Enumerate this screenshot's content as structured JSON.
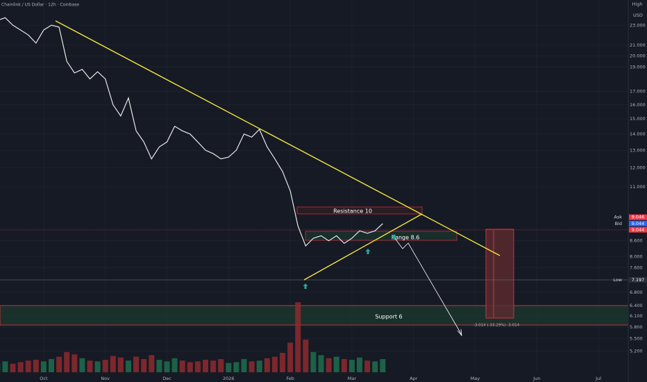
{
  "header": {
    "title": "Chainlink / US Dollar · 12h · Coinbase",
    "currency": "USD",
    "high_label": "High"
  },
  "chart_data": {
    "type": "line",
    "color": "#e8e8e8",
    "categories": [
      null,
      null,
      null,
      null,
      null,
      null,
      "Oct",
      null,
      null,
      null,
      null,
      null,
      null,
      null,
      "Nov",
      null,
      null,
      null,
      null,
      null,
      null,
      null,
      "Dec",
      null,
      null,
      null,
      null,
      null,
      null,
      null,
      "2026",
      null,
      null,
      null,
      null,
      null,
      null,
      null,
      "Feb",
      null,
      null,
      null,
      null,
      null,
      null,
      null,
      "Mar",
      null,
      null,
      null,
      null,
      null,
      null,
      null,
      "Apr",
      null,
      null,
      null,
      null,
      null,
      null,
      null,
      "May",
      null,
      null,
      null,
      null,
      null,
      null,
      null,
      "Jun",
      null,
      null,
      null,
      null,
      null,
      null,
      null,
      "Jul",
      null,
      null,
      null
    ],
    "values": [
      23.5,
      23.8,
      23,
      22.5,
      22,
      21.2,
      22.5,
      23,
      22.8,
      19.5,
      18.5,
      18.8,
      18,
      18.6,
      18,
      16,
      15.2,
      16.5,
      14.2,
      13.5,
      12.5,
      13.2,
      13.5,
      14.5,
      14.2,
      14,
      13.5,
      13,
      12.8,
      12.5,
      12.6,
      13,
      14,
      13.8,
      14.3,
      13.2,
      12.5,
      11.8,
      10.8,
      9.2,
      8.4,
      8.7,
      8.8,
      8.6,
      8.8,
      8.5,
      8.7,
      9,
      8.9,
      9,
      9.3,
      null,
      null,
      null,
      null,
      null,
      null,
      null,
      null,
      null,
      null,
      null,
      null,
      null,
      null,
      null,
      null,
      null,
      null,
      null,
      null,
      null,
      null,
      null,
      null,
      null,
      null,
      null,
      null,
      null,
      null,
      null
    ],
    "volume": {
      "up_color": "#1e6e4e",
      "down_color": "#8e2a2e",
      "vlim": [
        0,
        500
      ],
      "values": [
        120,
        140,
        110,
        130,
        150,
        160,
        140,
        170,
        200,
        260,
        230,
        180,
        150,
        140,
        160,
        210,
        190,
        150,
        200,
        170,
        220,
        160,
        140,
        180,
        150,
        130,
        140,
        160,
        150,
        170,
        120,
        130,
        170,
        140,
        150,
        180,
        200,
        250,
        380,
        900,
        420,
        260,
        220,
        180,
        200,
        170,
        160,
        190,
        150,
        140,
        170,
        null,
        null,
        null,
        null,
        null,
        null,
        null,
        null,
        null,
        null,
        null,
        null,
        null,
        null,
        null,
        null,
        null,
        null,
        null,
        null,
        null,
        null,
        null,
        null,
        null,
        null,
        null,
        null,
        null,
        null,
        null
      ]
    },
    "ylim": [
      4.72,
      25.8
    ],
    "log_scale": true,
    "grid": true,
    "yticks": [
      {
        "value": 23,
        "label": "23.000"
      },
      {
        "value": 21,
        "label": "21.000"
      },
      {
        "value": 20,
        "label": "20.000"
      },
      {
        "value": 19,
        "label": "19.000"
      },
      {
        "value": 17,
        "label": "17.000"
      },
      {
        "value": 16,
        "label": "16.000"
      },
      {
        "value": 15,
        "label": "15.000"
      },
      {
        "value": 14,
        "label": "14.000"
      },
      {
        "value": 13,
        "label": "13.000"
      },
      {
        "value": 12,
        "label": "12.000"
      },
      {
        "value": 11,
        "label": "11.000"
      },
      {
        "value": 8.6,
        "label": "8.600"
      },
      {
        "value": 8,
        "label": "8.000"
      },
      {
        "value": 7.6,
        "label": "7.600"
      },
      {
        "value": 6.8,
        "label": "6.800"
      },
      {
        "value": 6.4,
        "label": "6.400"
      },
      {
        "value": 6.1,
        "label": "6.100"
      },
      {
        "value": 5.8,
        "label": "5.800"
      },
      {
        "value": 5.5,
        "label": "5.500"
      },
      {
        "value": 5.2,
        "label": "5.200"
      }
    ],
    "price_badges": [
      {
        "label": "Ask",
        "value": 9.046,
        "color": "#f23645"
      },
      {
        "label": "Bid",
        "value": 9.044,
        "color": "#2962ff"
      },
      {
        "value": 9.044,
        "color": "#f23645"
      },
      {
        "label": "Low",
        "value": 7.197,
        "color": "#2a2e39"
      }
    ],
    "annotations": {
      "resistance": "Resistance 10",
      "range": "Range 8.6",
      "support": "Support 6",
      "target": "-3.014 (-33.29%) -3.014"
    }
  }
}
